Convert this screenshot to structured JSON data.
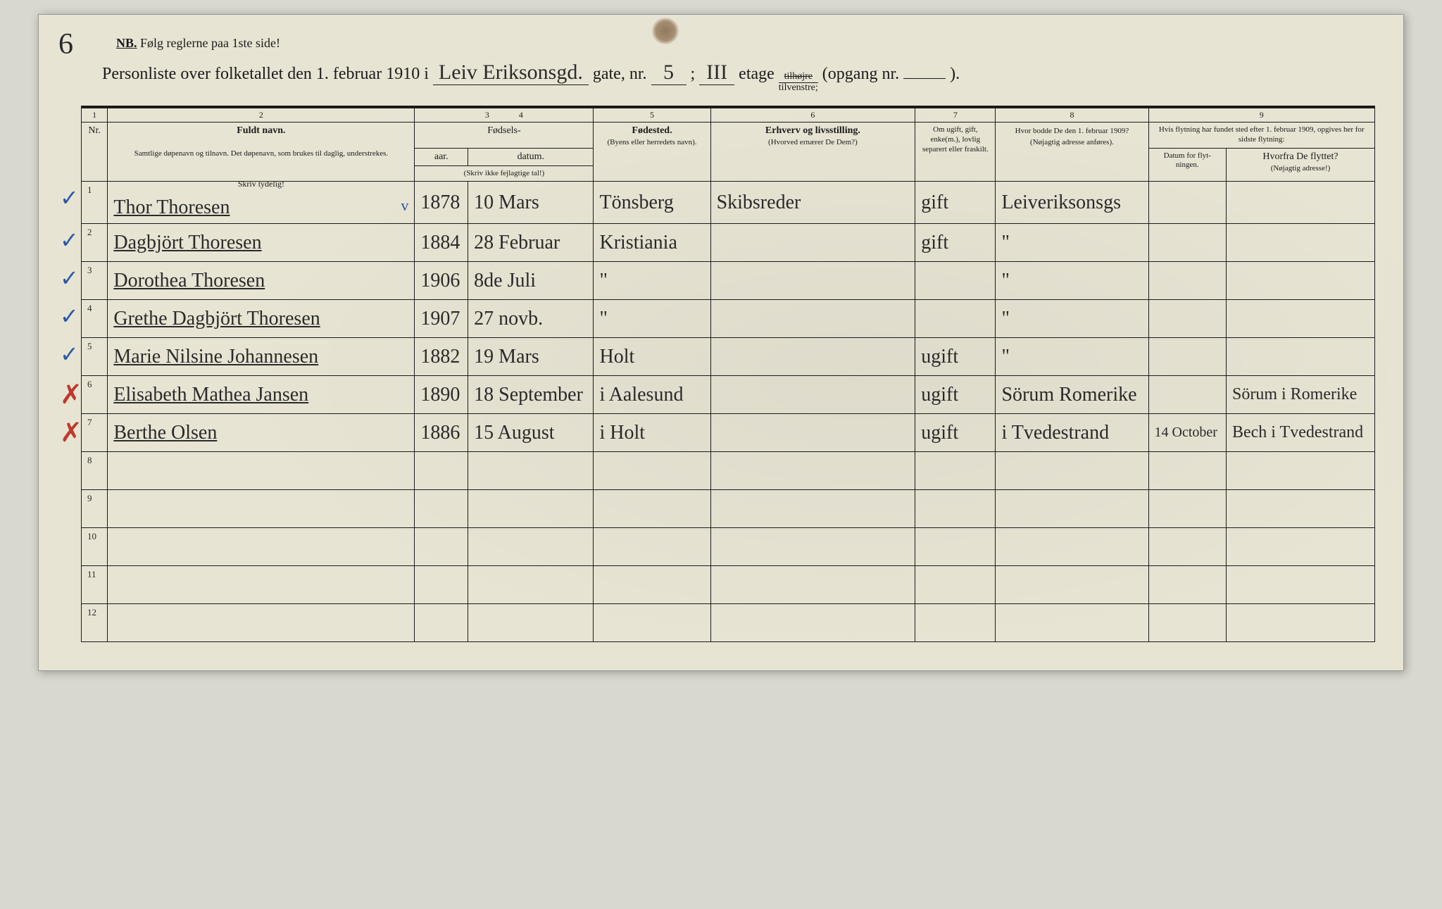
{
  "page_number_handwritten": "6",
  "nb_prefix": "NB.",
  "nb_text": "Følg reglerne paa 1ste side!",
  "title_preamble": "Personliste over folketallet den 1. februar 1910 i",
  "street_name": "Leiv Eriksonsgd.",
  "title_gate_nr": "gate, nr.",
  "house_number": "5",
  "title_semicolon": ";",
  "floor": "III",
  "title_etage": "etage",
  "side_top": "tilhøjre",
  "side_bottom": "tilvenstre;",
  "title_opgang": "(opgang nr.",
  "opgang_value": "",
  "title_opgang_close": ").",
  "colnums": [
    "1",
    "2",
    "3",
    "4",
    "5",
    "6",
    "7",
    "8",
    "9"
  ],
  "headers": {
    "nr": "Nr.",
    "fuldt_navn": "Fuldt navn.",
    "fuldt_navn_sub": "Samtlige døpenavn og tilnavn. Det døpenavn, som brukes til daglig, understrekes.",
    "fodsels": "Fødsels-",
    "aar": "aar.",
    "datum": "datum.",
    "fodsels_sub": "(Skriv ikke fejlagtige tal!)",
    "fodested": "Fødested.",
    "fodested_sub": "(Byens eller herredets navn).",
    "erhverv": "Erhverv og livsstilling.",
    "erhverv_sub": "(Hvorved ernærer De Dem?)",
    "civil": "Om ugift, gift, enke(m.), lovlig separert eller fraskilt.",
    "bodde_1909": "Hvor bodde De den 1. februar 1909?",
    "bodde_1909_sub": "(Nøjagtig adresse anføres).",
    "flytning": "Hvis flytning har fundet sted efter 1. februar 1909, opgives her for sidste flytning:",
    "flytning_date": "Datum for flyt-ningen.",
    "flytning_from": "Hvorfra De flyttet?",
    "flytning_from_sub": "(Nøjagtig adresse!)",
    "skriv_tydelig": "Skriv tydelig!"
  },
  "rows": [
    {
      "nr": "1",
      "mark": "blue-check",
      "name": "Thor Thoresen",
      "name_check": "v",
      "year": "1878",
      "date": "10 Mars",
      "place": "Tönsberg",
      "occ": "Skibsreder",
      "civil": "gift",
      "prev": "Leiveriksonsgs",
      "flytdate": "",
      "from": ""
    },
    {
      "nr": "2",
      "mark": "blue-check",
      "name": "Dagbjört Thoresen",
      "name_check": "",
      "year": "1884",
      "date": "28 Februar",
      "place": "Kristiania",
      "occ": "",
      "civil": "gift",
      "prev": "\"",
      "flytdate": "",
      "from": ""
    },
    {
      "nr": "3",
      "mark": "blue-check",
      "name": "Dorothea Thoresen",
      "name_check": "",
      "year": "1906",
      "date": "8de Juli",
      "place": "\"",
      "occ": "",
      "civil": "",
      "prev": "\"",
      "flytdate": "",
      "from": ""
    },
    {
      "nr": "4",
      "mark": "blue-check",
      "name": "Grethe Dagbjört Thoresen",
      "name_check": "",
      "year": "1907",
      "date": "27 novb.",
      "place": "\"",
      "occ": "",
      "civil": "",
      "prev": "\"",
      "flytdate": "",
      "from": ""
    },
    {
      "nr": "5",
      "mark": "blue-check",
      "name": "Marie Nilsine Johannesen",
      "name_check": "",
      "year": "1882",
      "date": "19 Mars",
      "place": "Holt",
      "occ": "",
      "civil": "ugift",
      "prev": "\"",
      "flytdate": "",
      "from": ""
    },
    {
      "nr": "6",
      "mark": "red-x",
      "name": "Elisabeth Mathea Jansen",
      "name_check": "",
      "year": "1890",
      "date": "18 September",
      "place": "i Aalesund",
      "occ": "",
      "civil": "ugift",
      "prev": "Sörum Romerike",
      "flytdate": "",
      "from": "Sörum i Romerike"
    },
    {
      "nr": "7",
      "mark": "red-x",
      "name": "Berthe Olsen",
      "name_check": "",
      "year": "1886",
      "date": "15 August",
      "place": "i Holt",
      "occ": "",
      "civil": "ugift",
      "prev": "i Tvedestrand",
      "flytdate": "14 October",
      "from": "Bech i Tvedestrand"
    },
    {
      "nr": "8",
      "mark": "",
      "name": "",
      "name_check": "",
      "year": "",
      "date": "",
      "place": "",
      "occ": "",
      "civil": "",
      "prev": "",
      "flytdate": "",
      "from": ""
    },
    {
      "nr": "9",
      "mark": "",
      "name": "",
      "name_check": "",
      "year": "",
      "date": "",
      "place": "",
      "occ": "",
      "civil": "",
      "prev": "",
      "flytdate": "",
      "from": ""
    },
    {
      "nr": "10",
      "mark": "",
      "name": "",
      "name_check": "",
      "year": "",
      "date": "",
      "place": "",
      "occ": "",
      "civil": "",
      "prev": "",
      "flytdate": "",
      "from": ""
    },
    {
      "nr": "11",
      "mark": "",
      "name": "",
      "name_check": "",
      "year": "",
      "date": "",
      "place": "",
      "occ": "",
      "civil": "",
      "prev": "",
      "flytdate": "",
      "from": ""
    },
    {
      "nr": "12",
      "mark": "",
      "name": "",
      "name_check": "",
      "year": "",
      "date": "",
      "place": "",
      "occ": "",
      "civil": "",
      "prev": "",
      "flytdate": "",
      "from": ""
    }
  ],
  "colors": {
    "paper": "#e8e4d4",
    "ink": "#1a1a1a",
    "handwriting": "#2a2a2a",
    "blue_pencil": "#2a5aa8",
    "red_pencil": "#c0392b",
    "stain": "#6a4a2a"
  }
}
